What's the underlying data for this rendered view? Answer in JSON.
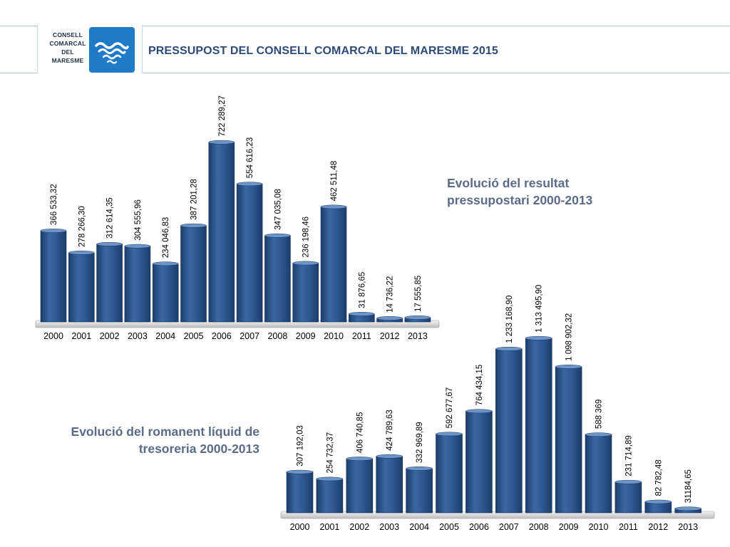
{
  "header": {
    "logo": {
      "line1": "CONSELL",
      "line2": "COMARCAL",
      "line3": "DEL",
      "line4": "MARESME"
    },
    "title": "PRESSUPOST DEL CONSELL COMARCAL DEL MARESME 2015"
  },
  "colors": {
    "bar": "#2f5a94",
    "bar_dark": "#1c3d6b",
    "bar_light": "#5d86bd",
    "title": "#2d4a7a",
    "caption": "#5b6b88",
    "accent": "#1f7ac8"
  },
  "chart_data": [
    {
      "type": "bar",
      "title_line1": "Evolució del resultat",
      "title_line2": "pressupostari 2000-2013",
      "categories": [
        "2000",
        "2001",
        "2002",
        "2003",
        "2004",
        "2005",
        "2006",
        "2007",
        "2008",
        "2009",
        "2010",
        "2011",
        "2012",
        "2013"
      ],
      "values": [
        366533.32,
        278266.3,
        312614.35,
        304555.96,
        234046.83,
        387201.28,
        722289.27,
        554616.23,
        347035.08,
        236198.46,
        462511.48,
        31876.65,
        14736.22,
        17555.85
      ],
      "labels": [
        "366 533,32",
        "278 266,30",
        "312 614,35",
        "304 555,96",
        "234 046,83",
        "387 201,28",
        "722 289,27",
        "554 616,23",
        "347 035,08",
        "236 198,46",
        "462 511,48",
        "31 876,65",
        "14 736,22",
        "17 555,85"
      ],
      "ylim": [
        0,
        750000
      ],
      "grid": false,
      "legend": "none"
    },
    {
      "type": "bar",
      "title_line1": "Evolució del romanent líquid de",
      "title_line2": "tresoreria 2000-2013",
      "categories": [
        "2000",
        "2001",
        "2002",
        "2003",
        "2004",
        "2005",
        "2006",
        "2007",
        "2008",
        "2009",
        "2010",
        "2011",
        "2012",
        "2013"
      ],
      "values": [
        307192.03,
        254732.37,
        406740.85,
        424789.63,
        332969.89,
        592677.67,
        764434.15,
        1233168.9,
        1313495.9,
        1098902.32,
        588369,
        231714.89,
        82782.48,
        31184.65
      ],
      "labels": [
        "307 192,03",
        "254 732,37",
        "406 740,85",
        "424 789,63",
        "332 969,89",
        "592 677,67",
        "764 434,15",
        "1 233 168,90",
        "1 313 495,90",
        "1 098 902,32",
        "588 369",
        "231 714,89",
        "82 782,48",
        "31184,65"
      ],
      "ylim": [
        0,
        1350000
      ],
      "grid": false,
      "legend": "none"
    }
  ]
}
